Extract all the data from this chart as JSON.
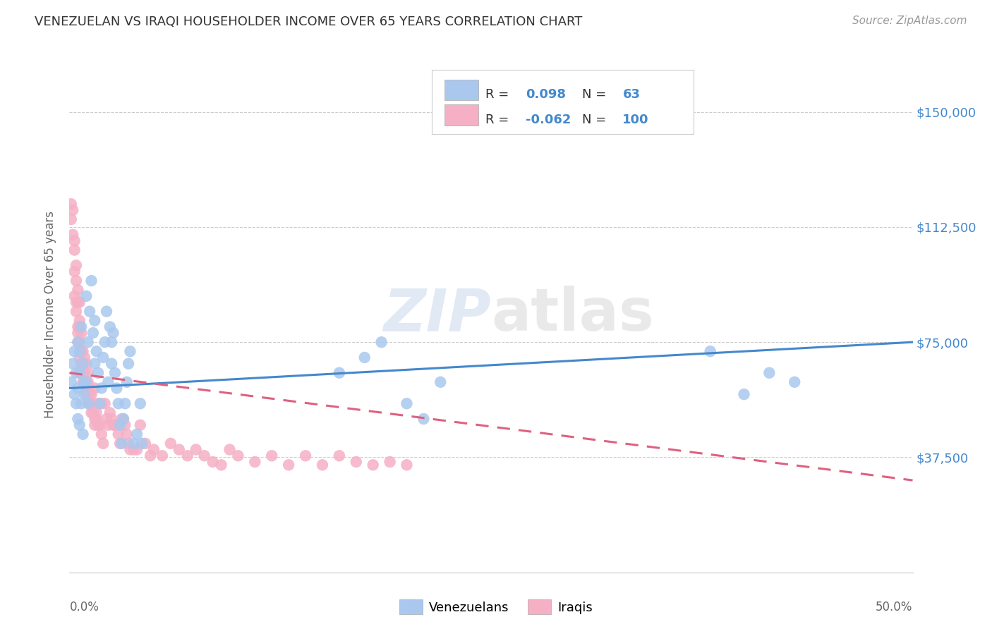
{
  "title": "VENEZUELAN VS IRAQI HOUSEHOLDER INCOME OVER 65 YEARS CORRELATION CHART",
  "source": "Source: ZipAtlas.com",
  "ylabel": "Householder Income Over 65 years",
  "y_ticks": [
    0,
    37500,
    75000,
    112500,
    150000
  ],
  "y_tick_labels": [
    "",
    "$37,500",
    "$75,000",
    "$112,500",
    "$150,000"
  ],
  "x_range": [
    0.0,
    0.5
  ],
  "y_range": [
    0,
    168000
  ],
  "r_venezuelan": 0.098,
  "n_venezuelan": 63,
  "r_iraqi": -0.062,
  "n_iraqi": 100,
  "color_venezuelan": "#aac8ee",
  "color_iraqi": "#f5b0c5",
  "line_color_venezuelan": "#4488cc",
  "line_color_iraqi": "#e06080",
  "legend_labels": [
    "Venezuelans",
    "Iraqis"
  ],
  "watermark_zip": "ZIP",
  "watermark_atlas": "atlas",
  "venezuelan_x": [
    0.001,
    0.002,
    0.003,
    0.003,
    0.004,
    0.004,
    0.005,
    0.005,
    0.005,
    0.006,
    0.006,
    0.006,
    0.007,
    0.007,
    0.008,
    0.008,
    0.009,
    0.009,
    0.01,
    0.01,
    0.011,
    0.011,
    0.012,
    0.013,
    0.014,
    0.015,
    0.015,
    0.016,
    0.017,
    0.018,
    0.019,
    0.02,
    0.021,
    0.022,
    0.023,
    0.024,
    0.025,
    0.025,
    0.026,
    0.027,
    0.028,
    0.029,
    0.03,
    0.031,
    0.032,
    0.033,
    0.034,
    0.035,
    0.036,
    0.038,
    0.04,
    0.042,
    0.043,
    0.16,
    0.175,
    0.185,
    0.2,
    0.21,
    0.22,
    0.38,
    0.4,
    0.415,
    0.43
  ],
  "venezuelan_y": [
    62000,
    68000,
    58000,
    72000,
    55000,
    65000,
    50000,
    60000,
    75000,
    48000,
    65000,
    72000,
    55000,
    80000,
    68000,
    45000,
    58000,
    62000,
    90000,
    62000,
    75000,
    55000,
    85000,
    95000,
    78000,
    68000,
    82000,
    72000,
    65000,
    55000,
    60000,
    70000,
    75000,
    85000,
    62000,
    80000,
    68000,
    75000,
    78000,
    65000,
    60000,
    55000,
    48000,
    42000,
    50000,
    55000,
    62000,
    68000,
    72000,
    42000,
    45000,
    55000,
    42000,
    65000,
    70000,
    75000,
    55000,
    50000,
    62000,
    72000,
    58000,
    65000,
    62000
  ],
  "iraqi_x": [
    0.001,
    0.001,
    0.002,
    0.002,
    0.003,
    0.003,
    0.003,
    0.003,
    0.004,
    0.004,
    0.004,
    0.004,
    0.005,
    0.005,
    0.005,
    0.005,
    0.005,
    0.006,
    0.006,
    0.006,
    0.006,
    0.006,
    0.007,
    0.007,
    0.007,
    0.007,
    0.008,
    0.008,
    0.008,
    0.008,
    0.009,
    0.009,
    0.009,
    0.01,
    0.01,
    0.01,
    0.011,
    0.011,
    0.011,
    0.012,
    0.012,
    0.012,
    0.013,
    0.013,
    0.013,
    0.014,
    0.014,
    0.015,
    0.015,
    0.015,
    0.016,
    0.016,
    0.017,
    0.017,
    0.018,
    0.019,
    0.019,
    0.02,
    0.021,
    0.022,
    0.023,
    0.024,
    0.025,
    0.026,
    0.027,
    0.028,
    0.029,
    0.03,
    0.031,
    0.032,
    0.033,
    0.034,
    0.035,
    0.036,
    0.038,
    0.04,
    0.042,
    0.045,
    0.048,
    0.05,
    0.055,
    0.06,
    0.065,
    0.07,
    0.075,
    0.08,
    0.085,
    0.09,
    0.095,
    0.1,
    0.11,
    0.12,
    0.13,
    0.14,
    0.15,
    0.16,
    0.17,
    0.18,
    0.19,
    0.2
  ],
  "iraqi_y": [
    120000,
    115000,
    118000,
    110000,
    108000,
    105000,
    98000,
    90000,
    95000,
    100000,
    85000,
    88000,
    80000,
    88000,
    78000,
    92000,
    75000,
    82000,
    70000,
    88000,
    75000,
    80000,
    65000,
    72000,
    78000,
    68000,
    72000,
    65000,
    68000,
    62000,
    70000,
    65000,
    62000,
    68000,
    60000,
    58000,
    65000,
    60000,
    62000,
    55000,
    60000,
    58000,
    55000,
    52000,
    58000,
    55000,
    52000,
    60000,
    50000,
    48000,
    52000,
    50000,
    48000,
    55000,
    48000,
    55000,
    45000,
    42000,
    55000,
    50000,
    48000,
    52000,
    50000,
    48000,
    48000,
    48000,
    45000,
    42000,
    50000,
    50000,
    48000,
    45000,
    42000,
    40000,
    40000,
    40000,
    48000,
    42000,
    38000,
    40000,
    38000,
    42000,
    40000,
    38000,
    40000,
    38000,
    36000,
    35000,
    40000,
    38000,
    36000,
    38000,
    35000,
    38000,
    35000,
    38000,
    36000,
    35000,
    36000,
    35000
  ],
  "v_line_x0": 0.0,
  "v_line_x1": 0.5,
  "v_line_y0": 60000,
  "v_line_y1": 75000,
  "i_line_x0": 0.0,
  "i_line_x1": 0.5,
  "i_line_y0": 65000,
  "i_line_y1": 30000
}
